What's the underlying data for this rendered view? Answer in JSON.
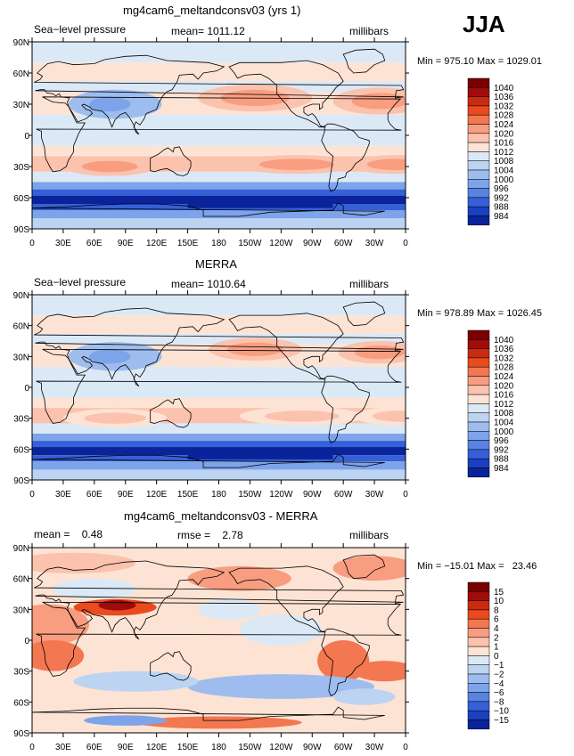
{
  "season": "JJA",
  "chart_data": [
    {
      "type": "heatmap",
      "title": "mg4cam6_meltandconsv03 (yrs 1)",
      "left_label": "Sea−level pressure",
      "center_label": "mean= 1011.12",
      "right_label": "millibars",
      "min_max_label": "Min = 975.10 Max = 1029.01",
      "lat_ticks": [
        "90N",
        "60N",
        "30N",
        "0",
        "30S",
        "60S",
        "90S"
      ],
      "lon_ticks": [
        "0",
        "30E",
        "60E",
        "90E",
        "120E",
        "150E",
        "180",
        "150W",
        "120W",
        "90W",
        "60W",
        "30W",
        "0"
      ],
      "colorbar_levels": [
        "1040",
        "1036",
        "1032",
        "1028",
        "1024",
        "1020",
        "1016",
        "1012",
        "1008",
        "1004",
        "1000",
        "996",
        "992",
        "988",
        "984"
      ],
      "colors": [
        "#7a0000",
        "#a00b0b",
        "#cc2a10",
        "#e94a1e",
        "#f37750",
        "#f89d80",
        "#fbc2ad",
        "#fde3d4",
        "#dbe9f6",
        "#bcd4f2",
        "#9ebdee",
        "#7da3ea",
        "#5983e3",
        "#3560d8",
        "#1a40c2",
        "#0a239a"
      ]
    },
    {
      "type": "heatmap",
      "title": "MERRA",
      "left_label": "Sea−level pressure",
      "center_label": "mean= 1010.64",
      "right_label": "millibars",
      "min_max_label": "Min = 978.89 Max = 1026.45",
      "lat_ticks": [
        "90N",
        "60N",
        "30N",
        "0",
        "30S",
        "60S",
        "90S"
      ],
      "lon_ticks": [
        "0",
        "30E",
        "60E",
        "90E",
        "120E",
        "150E",
        "180",
        "150W",
        "120W",
        "90W",
        "60W",
        "30W",
        "0"
      ],
      "colorbar_levels": [
        "1040",
        "1036",
        "1032",
        "1028",
        "1024",
        "1020",
        "1016",
        "1012",
        "1008",
        "1004",
        "1000",
        "996",
        "992",
        "988",
        "984"
      ],
      "colors": [
        "#7a0000",
        "#a00b0b",
        "#cc2a10",
        "#e94a1e",
        "#f37750",
        "#f89d80",
        "#fbc2ad",
        "#fde3d4",
        "#dbe9f6",
        "#bcd4f2",
        "#9ebdee",
        "#7da3ea",
        "#5983e3",
        "#3560d8",
        "#1a40c2",
        "#0a239a"
      ]
    },
    {
      "type": "heatmap",
      "title": "mg4cam6_meltandconsv03 - MERRA",
      "left_label": "mean =    0.48",
      "center_label": "rmse =    2.78",
      "right_label": "millibars",
      "min_max_label": "Min = −15.01 Max =   23.46",
      "lat_ticks": [
        "90N",
        "60N",
        "30N",
        "0",
        "30S",
        "60S",
        "90S"
      ],
      "lon_ticks": [
        "0",
        "30E",
        "60E",
        "90E",
        "120E",
        "150E",
        "180",
        "150W",
        "120W",
        "90W",
        "60W",
        "30W",
        "0"
      ],
      "colorbar_levels": [
        "15",
        "10",
        "8",
        "6",
        "4",
        "2",
        "1",
        "0",
        "−1",
        "−2",
        "−4",
        "−6",
        "−8",
        "−10",
        "−15"
      ],
      "colors": [
        "#7a0000",
        "#a00b0b",
        "#cc2a10",
        "#e94a1e",
        "#f37750",
        "#f89d80",
        "#fbc2ad",
        "#fde3d4",
        "#dbe9f6",
        "#bcd4f2",
        "#9ebdee",
        "#7da3ea",
        "#5983e3",
        "#3560d8",
        "#1a40c2",
        "#0a239a"
      ]
    }
  ]
}
